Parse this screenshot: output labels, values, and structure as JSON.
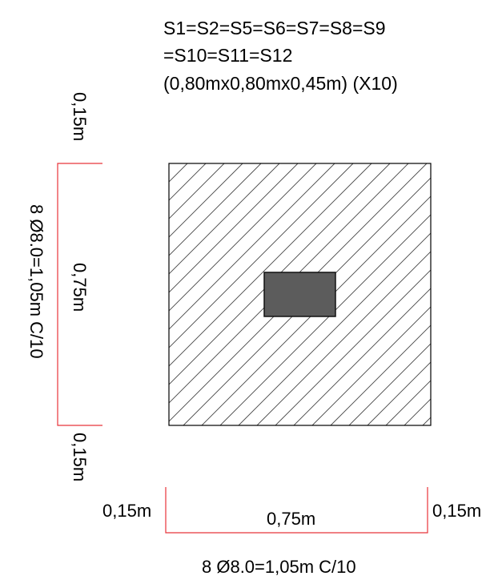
{
  "title": {
    "line1": "S1=S2=S5=S6=S7=S8=S9",
    "line2": "=S10=S11=S12",
    "line3": "(0,80mx0,80mx0,45m) (X10)"
  },
  "left_dimensions": {
    "top_cover": "0,15m",
    "middle": "0,75m",
    "bottom_cover": "0,15m",
    "rebar": "8 Ø8.0=1,05m C/10"
  },
  "bottom_dimensions": {
    "left_cover": "0,15m",
    "middle": "0,75m",
    "right_cover": "0,15m",
    "rebar": "8 Ø8.0=1,05m C/10"
  },
  "colors": {
    "dimension_line": "#e8343a",
    "outline": "#000000",
    "hatch": "#444444",
    "column": "#5c5c5c"
  }
}
